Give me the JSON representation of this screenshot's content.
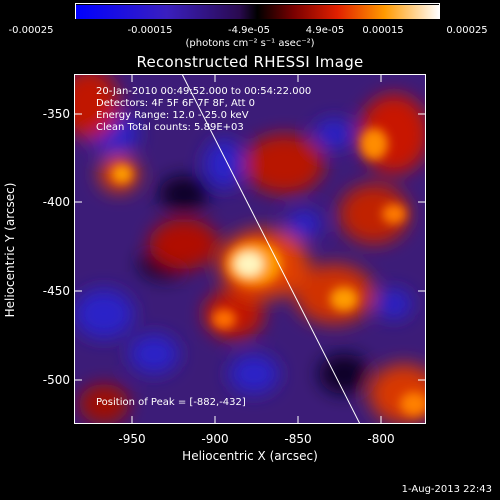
{
  "colorbar": {
    "ticks": [
      "-0.00025",
      "-0.00015",
      "-4.9e-05",
      "4.9e-05",
      "0.00015",
      "0.00025"
    ],
    "unit": "(photons cm⁻² s⁻¹ asec⁻²)"
  },
  "image": {
    "title": "Reconstructed RHESSI Image",
    "time_range": "20-Jan-2010 00:49:52.000 to 00:54:22.000",
    "detectors": "Detectors: 4F 5F 6F 7F 8F, Att 0",
    "energy_range": "Energy Range: 12.0 - 25.0 keV",
    "clean_counts": "Clean    Total counts: 5.89E+03",
    "peak": "Position of Peak = [-882,-432]"
  },
  "axes": {
    "xlabel": "Heliocentric X (arcsec)",
    "ylabel": "Heliocentric Y (arcsec)",
    "xticks": [
      "-950",
      "-900",
      "-850",
      "-800"
    ],
    "yticks": [
      "-350",
      "-400",
      "-450",
      "-500"
    ]
  },
  "timestamp": "1-Aug-2013 22:43"
}
